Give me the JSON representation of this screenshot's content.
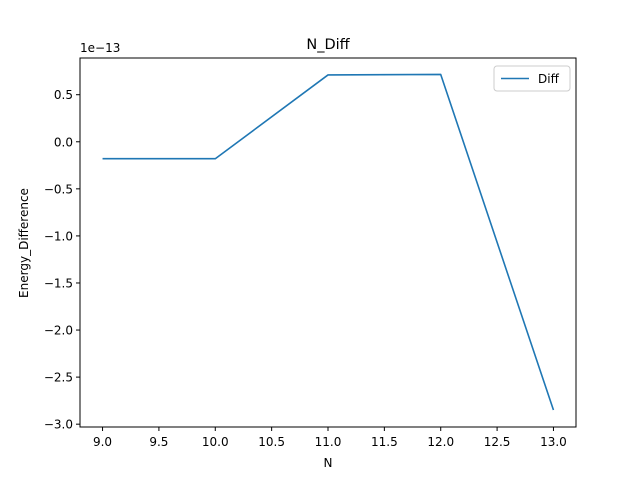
{
  "chart_data": {
    "type": "line",
    "title": "N_Diff",
    "xlabel": "N",
    "ylabel": "Energy_Difference",
    "y_offset_label": "1e−13",
    "x": [
      9.0,
      10.0,
      11.0,
      12.0,
      13.0
    ],
    "series": [
      {
        "name": "Diff",
        "color": "#1f77b4",
        "values": [
          -0.18,
          -0.18,
          0.71,
          0.715,
          -2.85
        ]
      }
    ],
    "xlim": [
      8.8,
      13.2
    ],
    "ylim": [
      -3.03,
      0.89
    ],
    "x_ticks": [
      9.0,
      9.5,
      10.0,
      10.5,
      11.0,
      11.5,
      12.0,
      12.5,
      13.0
    ],
    "x_tick_labels": [
      "9.0",
      "9.5",
      "10.0",
      "10.5",
      "11.0",
      "11.5",
      "12.0",
      "12.5",
      "13.0"
    ],
    "y_ticks": [
      -3.0,
      -2.5,
      -2.0,
      -1.5,
      -1.0,
      -0.5,
      0.0,
      0.5
    ],
    "y_tick_labels": [
      "−3.0",
      "−2.5",
      "−2.0",
      "−1.5",
      "−1.0",
      "−0.5",
      "0.0",
      "0.5"
    ],
    "grid": false,
    "legend": "top-right"
  }
}
